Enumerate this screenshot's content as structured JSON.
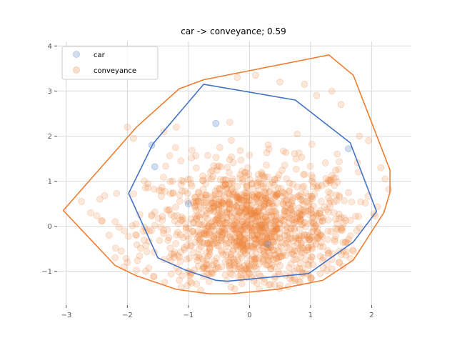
{
  "chart_data": {
    "type": "scatter",
    "title": "car -> conveyance; 0.59",
    "xlabel": "",
    "ylabel": "",
    "xlim": [
      -3.15,
      2.65
    ],
    "ylim": [
      -1.75,
      4.1
    ],
    "grid": true,
    "legend_position": "top-left",
    "x_ticks": [
      -3,
      -2,
      -1,
      0,
      1,
      2
    ],
    "y_ticks": [
      -1,
      0,
      1,
      2,
      3,
      4
    ],
    "x_tick_labels": [
      "−3",
      "−2",
      "−1",
      "0",
      "1",
      "2"
    ],
    "y_tick_labels": [
      "−1",
      "0",
      "1",
      "2",
      "3",
      "4"
    ],
    "series": [
      {
        "name": "car",
        "color": "#4472c4",
        "hull": [
          [
            -0.75,
            3.15
          ],
          [
            0.75,
            2.8
          ],
          [
            1.65,
            1.85
          ],
          [
            2.08,
            0.33
          ],
          [
            1.7,
            -0.35
          ],
          [
            0.97,
            -1.05
          ],
          [
            -0.36,
            -1.22
          ],
          [
            -0.55,
            -1.2
          ],
          [
            -1.05,
            -0.97
          ],
          [
            -1.5,
            -0.7
          ],
          [
            -1.98,
            0.73
          ],
          [
            -1.58,
            1.83
          ]
        ],
        "points": [
          [
            -0.55,
            2.28
          ],
          [
            -1.55,
            1.32
          ],
          [
            1.62,
            1.72
          ],
          [
            -1.6,
            1.8
          ],
          [
            -1.0,
            0.5
          ],
          [
            0.3,
            -0.4
          ]
        ]
      },
      {
        "name": "conveyance",
        "color": "#ed7d31",
        "hull": [
          [
            1.3,
            3.8
          ],
          [
            1.7,
            3.35
          ],
          [
            2.3,
            1.25
          ],
          [
            2.3,
            0.75
          ],
          [
            2.2,
            0.3
          ],
          [
            1.7,
            -0.75
          ],
          [
            1.2,
            -1.2
          ],
          [
            0.45,
            -1.4
          ],
          [
            -0.3,
            -1.5
          ],
          [
            -0.65,
            -1.5
          ],
          [
            -1.2,
            -1.4
          ],
          [
            -1.85,
            -1.1
          ],
          [
            -2.2,
            -0.87
          ],
          [
            -3.05,
            0.35
          ],
          [
            -1.85,
            2.2
          ],
          [
            -1.15,
            3.05
          ],
          [
            -0.75,
            3.25
          ]
        ],
        "points": [
          [
            -2.75,
            0.55
          ],
          [
            -2.6,
            0.3
          ],
          [
            -2.45,
            0.6
          ],
          [
            -2.2,
            0.1
          ],
          [
            -2.3,
            -0.2
          ],
          [
            -2.0,
            2.2
          ],
          [
            -1.9,
            1.95
          ],
          [
            -1.4,
            2.1
          ],
          [
            -1.2,
            2.2
          ],
          [
            -0.2,
            3.3
          ],
          [
            0.1,
            3.35
          ],
          [
            0.5,
            3.2
          ],
          [
            0.9,
            3.15
          ],
          [
            1.1,
            2.9
          ],
          [
            1.35,
            3.0
          ],
          [
            1.5,
            2.7
          ],
          [
            1.8,
            2.0
          ],
          [
            1.95,
            1.9
          ],
          [
            2.15,
            1.3
          ],
          [
            2.22,
            1.05
          ],
          [
            -2.1,
            -0.55
          ],
          [
            -2.0,
            -0.8
          ],
          [
            -1.7,
            -1.0
          ],
          [
            -0.8,
            -1.42
          ],
          [
            -0.3,
            -1.35
          ],
          [
            0.5,
            -1.3
          ],
          [
            1.35,
            -0.95
          ],
          [
            1.7,
            -0.55
          ]
        ]
      }
    ]
  }
}
